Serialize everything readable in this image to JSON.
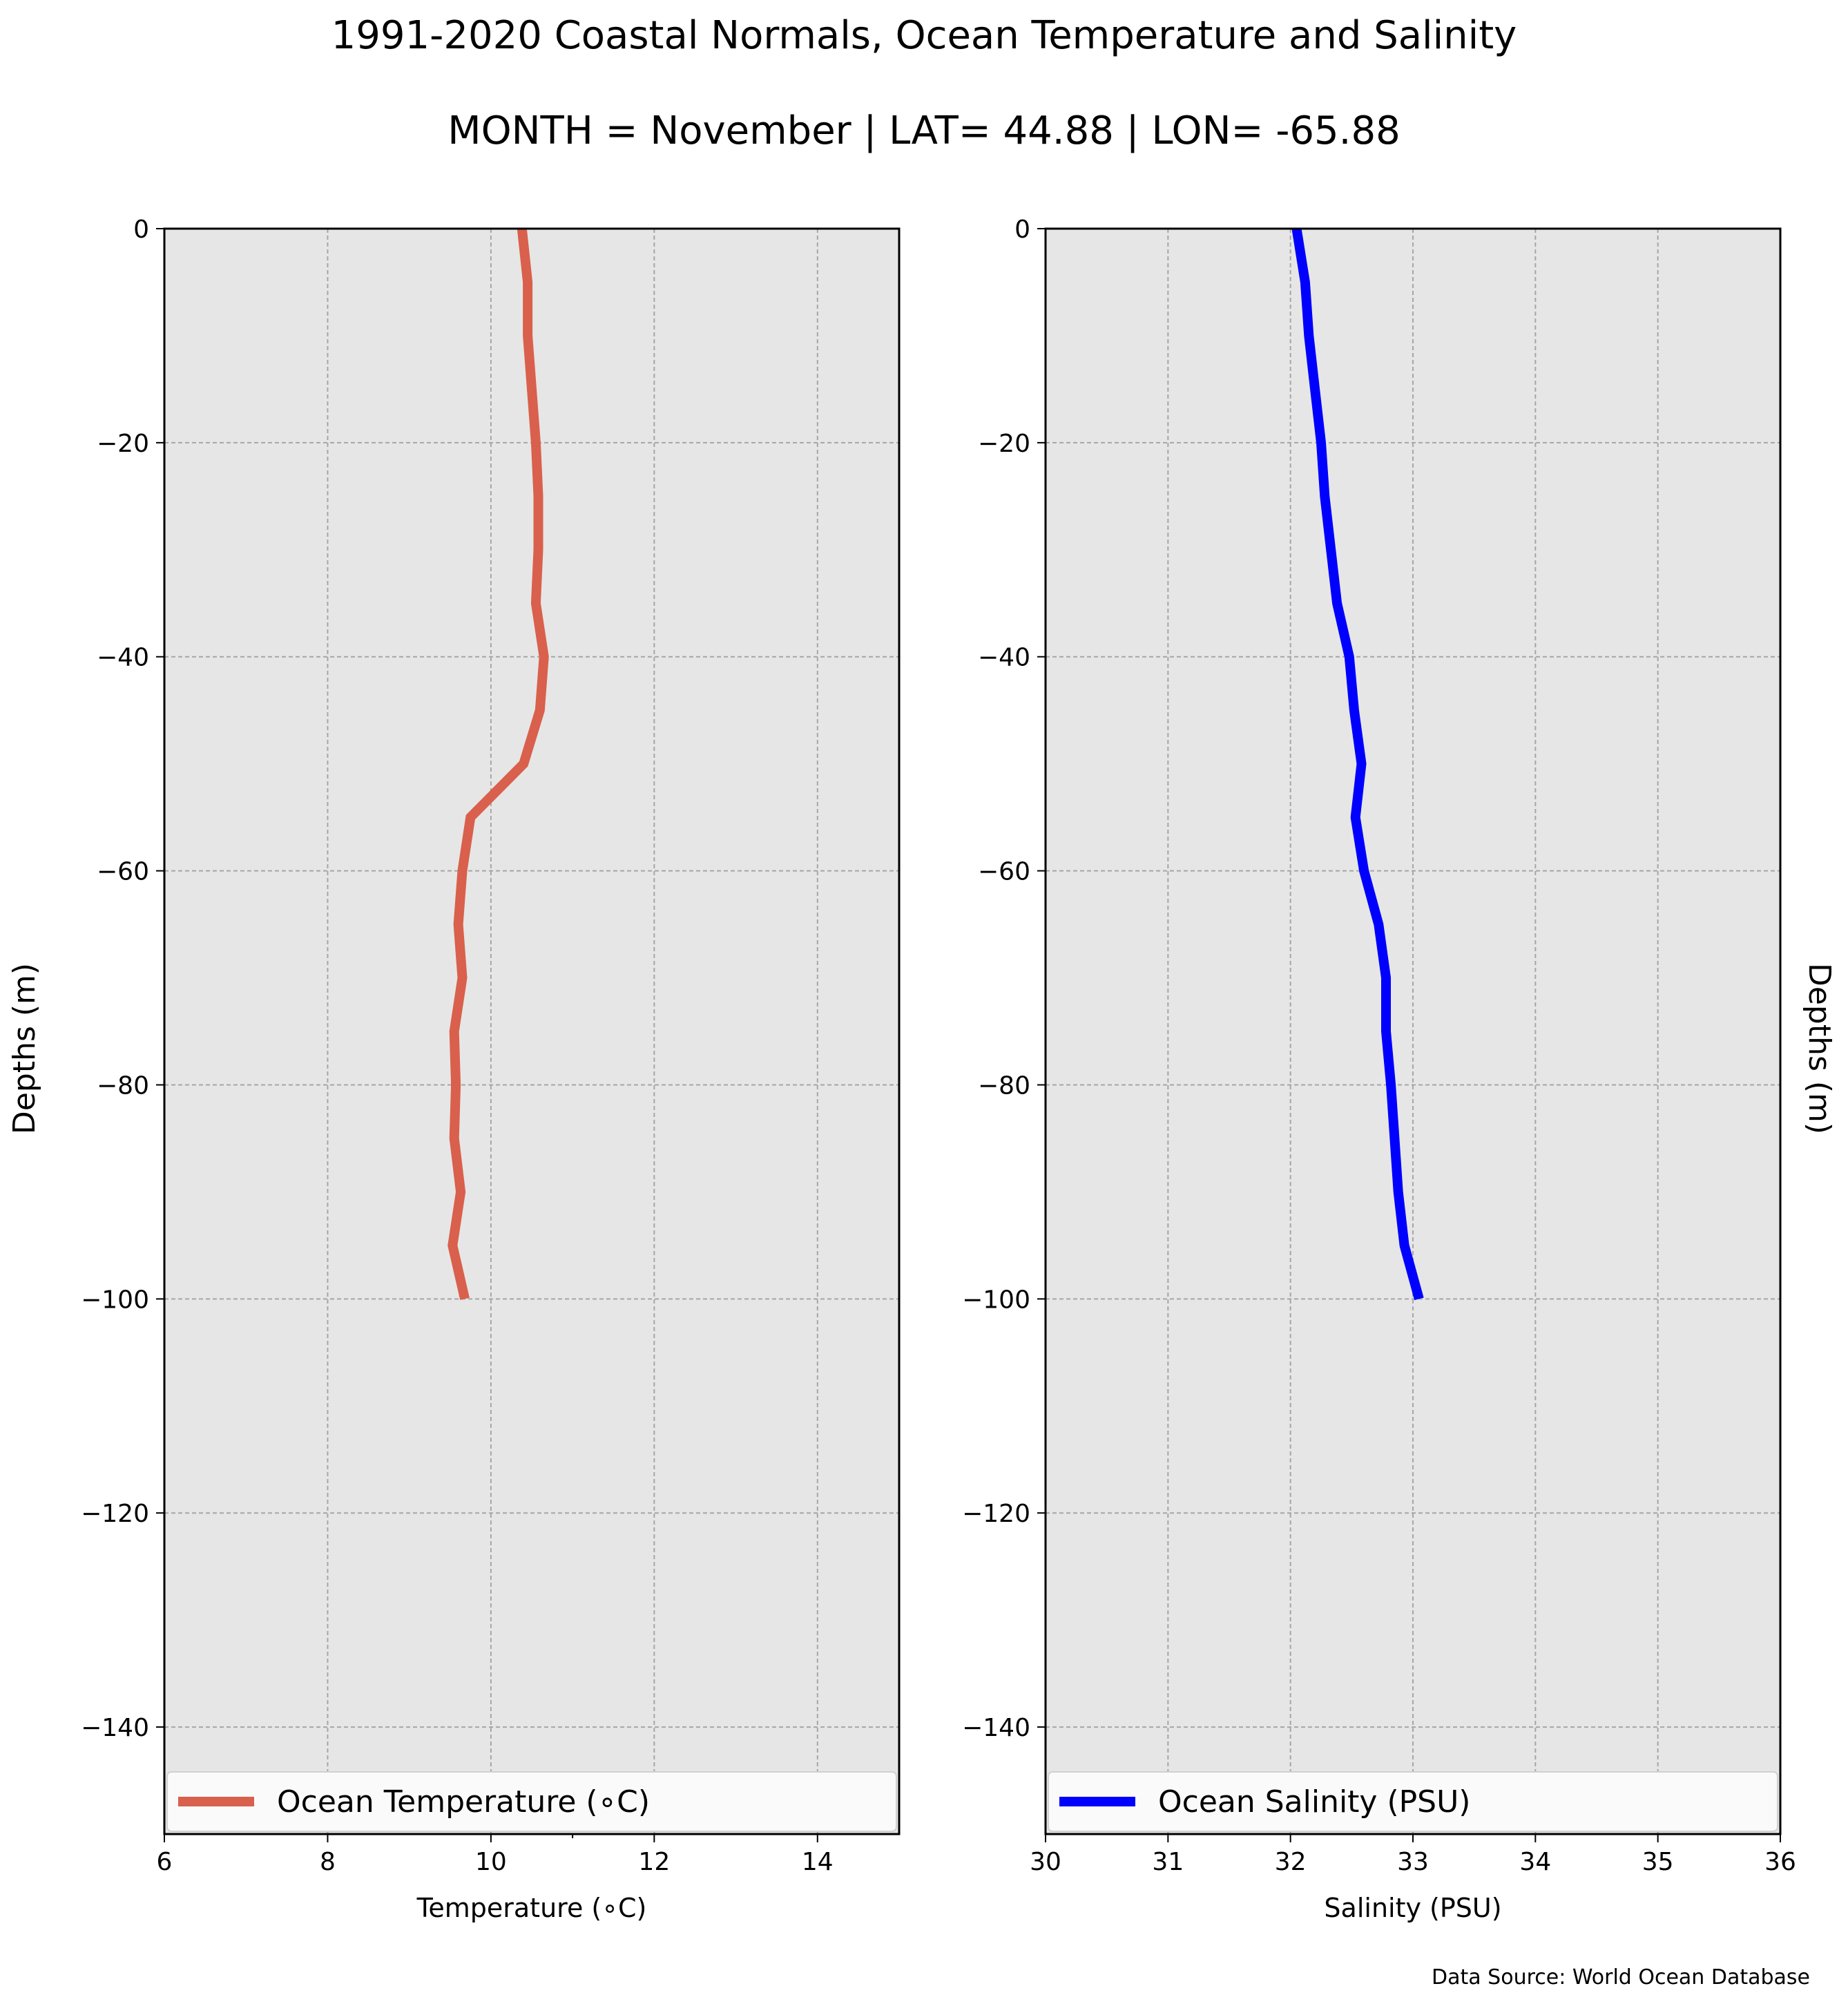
{
  "figure": {
    "title": "1991-2020 Coastal Normals, Ocean Temperature and Salinity",
    "subtitle": "MONTH = November | LAT= 44.88 | LON= -65.88",
    "footer": "Data Source: World Ocean Database"
  },
  "chart_data": [
    {
      "type": "line",
      "title": "",
      "xlabel": "Temperature (∘C)",
      "ylabel": "Depths (m)",
      "xlim": [
        6,
        15
      ],
      "ylim": [
        -150,
        0
      ],
      "xticks": [
        6,
        8,
        10,
        12,
        14
      ],
      "yticks": [
        0,
        -20,
        -40,
        -60,
        -80,
        -100,
        -120,
        -140
      ],
      "grid": true,
      "legend_position": "bottom",
      "colors": {
        "line": "#d9604c",
        "plot_bg": "#e6e6e6"
      },
      "series": [
        {
          "name": "Ocean Temperature (∘C)",
          "x": [
            10.38,
            10.45,
            10.45,
            10.5,
            10.55,
            10.58,
            10.58,
            10.55,
            10.65,
            10.6,
            10.4,
            9.75,
            9.65,
            9.6,
            9.65,
            9.55,
            9.57,
            9.55,
            9.63,
            9.53,
            9.68
          ],
          "y": [
            0,
            -5,
            -10,
            -15,
            -20,
            -25,
            -30,
            -35,
            -40,
            -45,
            -50,
            -55,
            -60,
            -65,
            -70,
            -75,
            -80,
            -85,
            -90,
            -95,
            -100
          ]
        }
      ]
    },
    {
      "type": "line",
      "title": "",
      "xlabel": "Salinity (PSU)",
      "ylabel": "Depths (m)",
      "xlim": [
        30,
        36
      ],
      "ylim": [
        -150,
        0
      ],
      "xticks": [
        30,
        31,
        32,
        33,
        34,
        35,
        36
      ],
      "yticks": [
        0,
        -20,
        -40,
        -60,
        -80,
        -100,
        -120,
        -140
      ],
      "grid": true,
      "legend_position": "bottom",
      "colors": {
        "line": "#0000ff",
        "plot_bg": "#e6e6e6"
      },
      "series": [
        {
          "name": "Ocean Salinity (PSU)",
          "x": [
            32.05,
            32.12,
            32.15,
            32.2,
            32.25,
            32.28,
            32.33,
            32.38,
            32.48,
            32.52,
            32.58,
            32.53,
            32.6,
            32.72,
            32.78,
            32.78,
            32.82,
            32.85,
            32.88,
            32.93,
            33.05
          ],
          "y": [
            0,
            -5,
            -10,
            -15,
            -20,
            -25,
            -30,
            -35,
            -40,
            -45,
            -50,
            -55,
            -60,
            -65,
            -70,
            -75,
            -80,
            -85,
            -90,
            -95,
            -100
          ]
        }
      ]
    }
  ]
}
